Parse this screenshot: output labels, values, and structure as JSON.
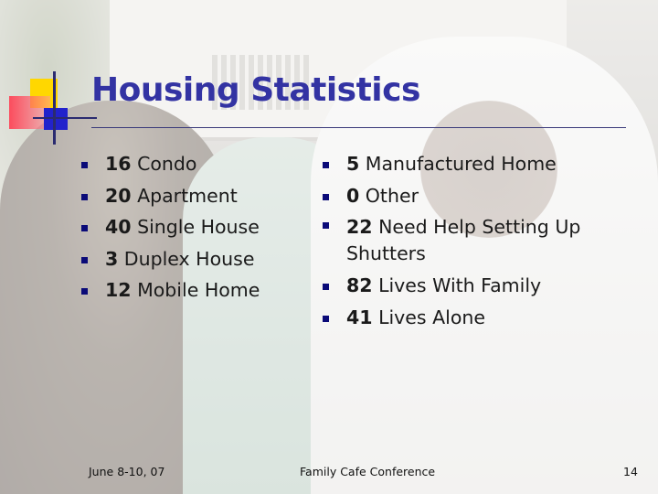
{
  "slide": {
    "title": "Housing Statistics",
    "colors": {
      "title": "#3333a3",
      "bullet": "#0a0a78",
      "logo_yellow": "#ffd700",
      "logo_red": "#ff3c50",
      "logo_blue": "#2222cc"
    },
    "bullet_icon": "square-bullet-icon",
    "left_column": [
      {
        "number": "16",
        "label": "Condo"
      },
      {
        "number": "20",
        "label": "Apartment"
      },
      {
        "number": "40",
        "label": "Single House"
      },
      {
        "number": "3",
        "label": "Duplex House"
      },
      {
        "number": "12",
        "label": "Mobile Home"
      }
    ],
    "right_column": [
      {
        "number": "5",
        "label": "Manufactured Home"
      },
      {
        "number": "0",
        "label": "Other"
      },
      {
        "number": "22",
        "label": "Need Help Setting Up Shutters"
      },
      {
        "number": "82",
        "label": "Lives With Family"
      },
      {
        "number": "41",
        "label": "Lives Alone"
      }
    ]
  },
  "footer": {
    "date": "June 8-10, 07",
    "event": "Family Cafe Conference",
    "page": "14"
  }
}
